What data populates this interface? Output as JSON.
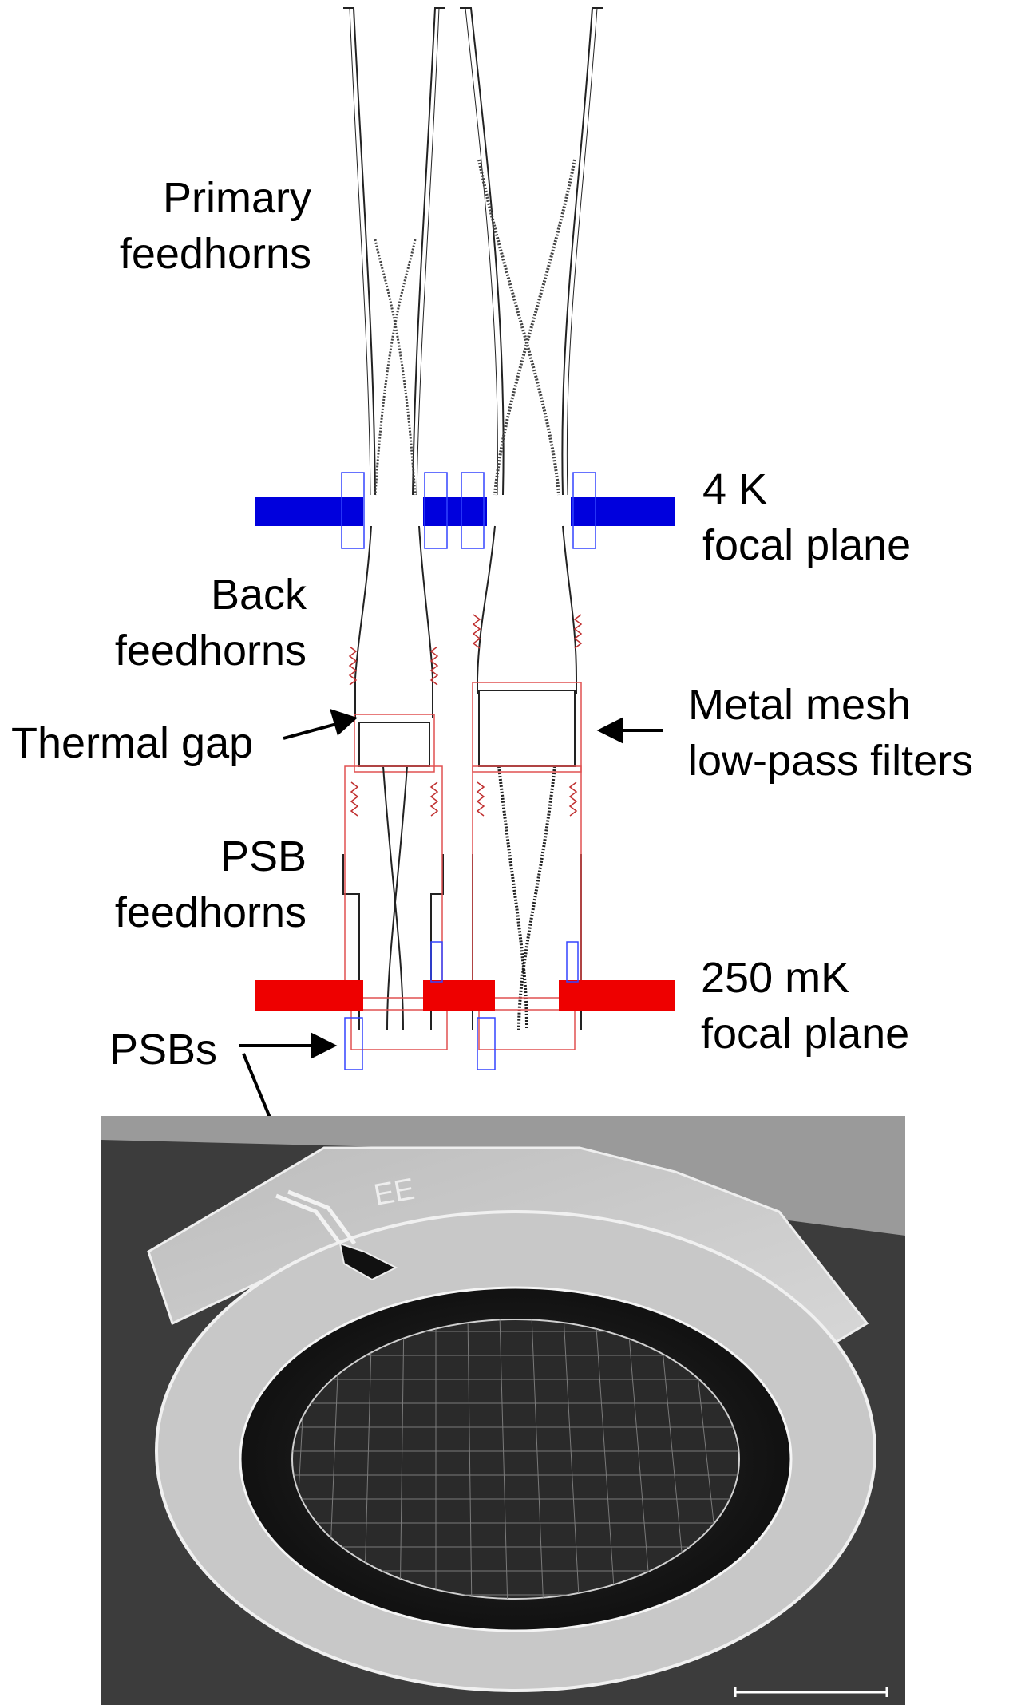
{
  "labels": {
    "primary_feedhorns": [
      "Primary",
      "feedhorns"
    ],
    "focal_plane_4k": [
      "4 K",
      "focal plane"
    ],
    "back_feedhorns": [
      "Back",
      "feedhorns"
    ],
    "thermal_gap": "Thermal gap",
    "metal_mesh": [
      "Metal mesh",
      "low-pass filters"
    ],
    "psb_feedhorns": [
      "PSB",
      "feedhorns"
    ],
    "focal_plane_250mk": [
      "250 mK",
      "focal plane"
    ],
    "psbs": "PSBs",
    "photo_marking": "EE"
  },
  "colors": {
    "focal_plane_4k": "#0000dd",
    "focal_plane_250mk": "#ee0000",
    "horn_outline": "#222222",
    "psb_housing": "#e05050",
    "photo_bg": "#4a4a4a"
  }
}
